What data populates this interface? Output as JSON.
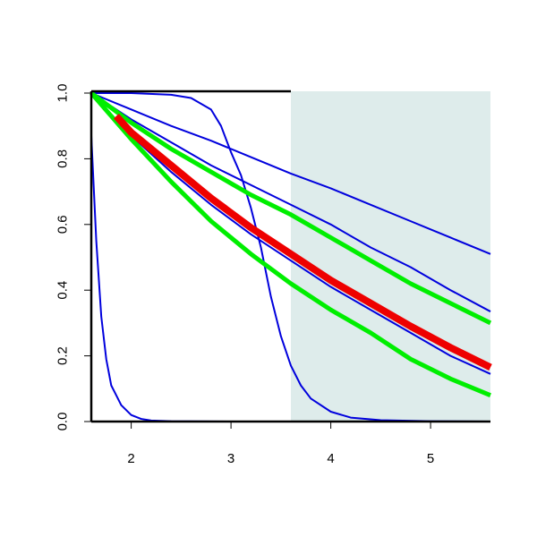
{
  "chart_data": {
    "type": "line",
    "xlim": [
      1.6,
      5.6
    ],
    "ylim": [
      0,
      1
    ],
    "xticks": [
      2,
      3,
      4,
      5
    ],
    "yticks": [
      {
        "value": 0,
        "label": "0.0"
      },
      {
        "value": 0.2,
        "label": "0.2"
      },
      {
        "value": 0.4,
        "label": "0.4"
      },
      {
        "value": 0.6,
        "label": "0.6"
      },
      {
        "value": 0.8,
        "label": "0.8"
      },
      {
        "value": 1,
        "label": "1.0"
      }
    ],
    "shaded_region": {
      "xlim": [
        3.6,
        5.6
      ],
      "color": "#deeceb"
    },
    "series": [
      {
        "color": "#0000dd",
        "x": [
          1.6,
          2.0,
          2.4,
          2.8,
          3.2,
          3.6,
          4.0,
          4.4,
          4.8,
          5.2,
          5.6
        ],
        "values": [
          1,
          0.95,
          0.9,
          0.855,
          0.805,
          0.755,
          0.71,
          0.66,
          0.61,
          0.56,
          0.51
        ]
      },
      {
        "color": "#0000dd",
        "x": [
          1.6,
          2.0,
          2.4,
          2.8,
          3.2,
          3.6,
          4.0,
          4.4,
          4.8,
          5.2,
          5.6
        ],
        "values": [
          1,
          0.92,
          0.85,
          0.78,
          0.72,
          0.66,
          0.6,
          0.53,
          0.47,
          0.4,
          0.335
        ]
      },
      {
        "color": "#0000dd",
        "x": [
          1.6,
          2.0,
          2.4,
          2.8,
          3.2,
          3.6,
          4.0,
          4.4,
          4.8,
          5.2,
          5.6
        ],
        "values": [
          1,
          0.87,
          0.76,
          0.66,
          0.57,
          0.49,
          0.41,
          0.34,
          0.27,
          0.2,
          0.145
        ]
      },
      {
        "color": "#0000dd",
        "x": [
          1.6,
          2.0,
          2.4,
          2.6,
          2.8,
          2.9,
          3.0,
          3.1,
          3.2,
          3.3,
          3.4,
          3.5,
          3.6,
          3.7,
          3.8,
          4.0,
          4.2,
          4.5,
          5.0,
          5.6
        ],
        "values": [
          1,
          1,
          0.995,
          0.985,
          0.95,
          0.9,
          0.82,
          0.75,
          0.65,
          0.53,
          0.38,
          0.26,
          0.17,
          0.11,
          0.07,
          0.03,
          0.012,
          0.004,
          0.001,
          0
        ]
      },
      {
        "color": "#0000dd",
        "x": [
          1.6,
          1.65,
          1.7,
          1.75,
          1.8,
          1.9,
          2.0,
          2.1,
          2.2,
          2.4,
          3.0,
          5.6
        ],
        "values": [
          0.87,
          0.55,
          0.32,
          0.19,
          0.11,
          0.05,
          0.02,
          0.008,
          0.003,
          0.001,
          0,
          0
        ]
      },
      {
        "color": "#00ee00",
        "x": [
          1.6,
          2.0,
          2.4,
          2.8,
          3.2,
          3.6,
          4.0,
          4.4,
          4.8,
          5.2,
          5.6
        ],
        "values": [
          1,
          0.91,
          0.83,
          0.76,
          0.69,
          0.63,
          0.56,
          0.49,
          0.42,
          0.36,
          0.3
        ]
      },
      {
        "color": "#00ee00",
        "x": [
          1.6,
          2.0,
          2.4,
          2.8,
          3.2,
          3.6,
          4.0,
          4.4,
          4.8,
          5.2,
          5.6
        ],
        "values": [
          1,
          0.86,
          0.73,
          0.61,
          0.51,
          0.42,
          0.34,
          0.27,
          0.19,
          0.13,
          0.08
        ]
      },
      {
        "color": "#ee0000",
        "x": [
          1.85,
          2.0,
          2.4,
          2.8,
          3.2,
          3.6,
          4.0,
          4.4,
          4.8,
          5.2,
          5.6
        ],
        "values": [
          0.93,
          0.88,
          0.78,
          0.68,
          0.59,
          0.51,
          0.43,
          0.36,
          0.29,
          0.225,
          0.165
        ]
      }
    ]
  }
}
